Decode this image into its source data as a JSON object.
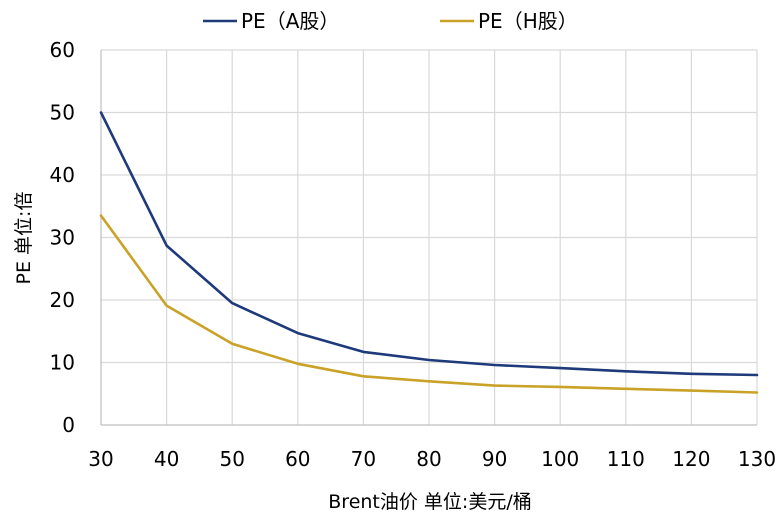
{
  "chart_data": {
    "type": "line",
    "title": "",
    "xlabel": "Brent油价  单位:美元/桶",
    "ylabel": "PE  单位:倍",
    "x": [
      30,
      40,
      50,
      60,
      70,
      80,
      90,
      100,
      110,
      120,
      130
    ],
    "xlim": [
      30,
      130
    ],
    "ylim": [
      0,
      60
    ],
    "yticks": [
      0,
      10,
      20,
      30,
      40,
      50,
      60
    ],
    "grid": true,
    "legend_position": "top-center",
    "series": [
      {
        "name": "PE（A股）",
        "color": "#1F3A7A",
        "values": [
          50.0,
          28.7,
          19.5,
          14.7,
          11.7,
          10.4,
          9.6,
          9.1,
          8.6,
          8.2,
          8.0
        ]
      },
      {
        "name": "PE（H股）",
        "color": "#C9A227",
        "values": [
          33.5,
          19.1,
          13.0,
          9.8,
          7.8,
          7.0,
          6.3,
          6.1,
          5.8,
          5.5,
          5.2
        ]
      }
    ]
  }
}
